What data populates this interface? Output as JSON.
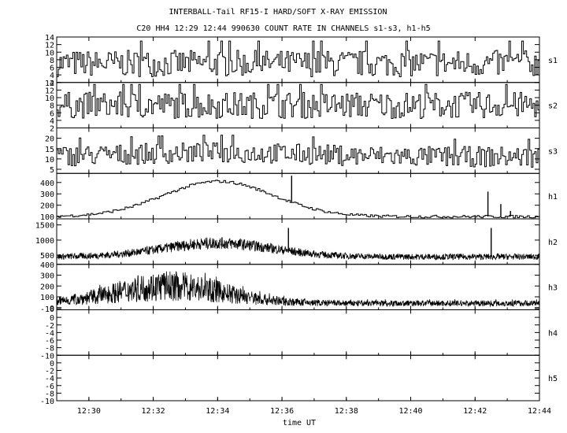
{
  "chart_data": {
    "type": "line",
    "title": "INTERBALL-Tail RF15-I HARD/SOFT X-RAY EMISSION",
    "subtitle": "C20 HH4 12:29 12:44 990630  COUNT RATE IN CHANNELS s1-s3, h1-h5",
    "xlabel": "time UT",
    "x_ticks": [
      "12:30",
      "12:32",
      "12:34",
      "12:36",
      "12:38",
      "12:40",
      "12:42",
      "12:44"
    ],
    "x_range": [
      "12:29",
      "12:44"
    ],
    "panels": [
      {
        "name": "s1",
        "ylim": [
          2,
          14
        ],
        "y_ticks": [
          "14",
          "12",
          "10",
          "8",
          "6",
          "4",
          "2"
        ],
        "baseline": 7,
        "amplitude": 3.5,
        "peak": 13.5,
        "envelope": "flat"
      },
      {
        "name": "s2",
        "ylim": [
          2,
          14
        ],
        "y_ticks": [
          "14",
          "12",
          "10",
          "8",
          "6",
          "4",
          "2"
        ],
        "baseline": 8,
        "amplitude": 3.5,
        "peak": 13.5,
        "envelope": "flat"
      },
      {
        "name": "s3",
        "ylim": [
          3,
          25
        ],
        "y_ticks": [
          "20",
          "15",
          "10",
          "5"
        ],
        "baseline": 11,
        "amplitude": 5,
        "peak": 24,
        "envelope": "mild"
      },
      {
        "name": "h1",
        "ylim": [
          80,
          480
        ],
        "y_ticks": [
          "400",
          "300",
          "200",
          "100"
        ],
        "baseline": 100,
        "peak": 410,
        "peak_time": "12:34",
        "spikes": [
          {
            "t": "12:36.3",
            "v": 460
          },
          {
            "t": "12:42.4",
            "v": 320
          },
          {
            "t": "12:42.8",
            "v": 210
          },
          {
            "t": "12:43.1",
            "v": 150
          }
        ]
      },
      {
        "name": "h2",
        "ylim": [
          200,
          1700
        ],
        "y_ticks": [
          "1500",
          "1000",
          "500"
        ],
        "baseline": 450,
        "peak": 900,
        "peak_time": "12:34",
        "spikes": [
          {
            "t": "12:36.2",
            "v": 1400
          },
          {
            "t": "12:42.5",
            "v": 1400
          }
        ]
      },
      {
        "name": "h3",
        "ylim": [
          -20,
          400
        ],
        "y_ticks": [
          "400",
          "300",
          "200",
          "100",
          "0",
          "-10"
        ],
        "baseline": 40,
        "peak": 200,
        "peak_time": "12:32.5"
      },
      {
        "name": "h4",
        "ylim": [
          -10,
          2
        ],
        "y_ticks": [
          "0",
          "-2",
          "-4",
          "-6",
          "-8",
          "-10"
        ],
        "empty": true
      },
      {
        "name": "h5",
        "ylim": [
          -10,
          2
        ],
        "y_ticks": [
          "0",
          "-2",
          "-4",
          "-6",
          "-8",
          "-10"
        ],
        "empty": true
      }
    ]
  }
}
